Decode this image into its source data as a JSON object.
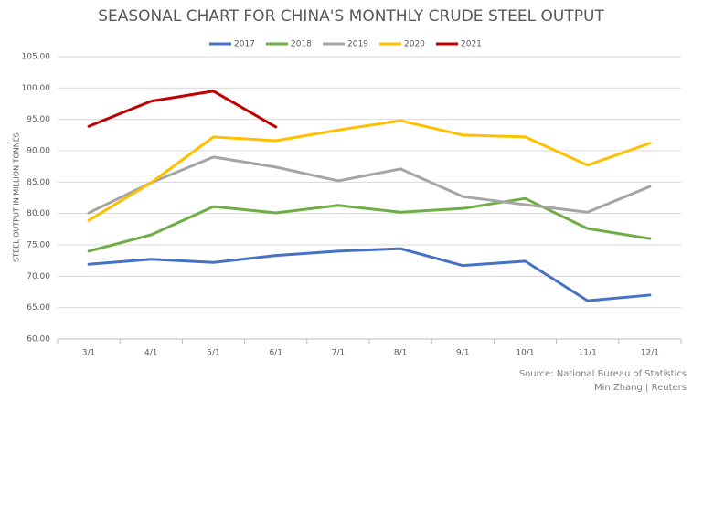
{
  "chart_data": {
    "type": "line",
    "title": "SEASONAL CHART FOR CHINA'S MONTHLY CRUDE STEEL OUTPUT",
    "y_label": "STEEL OUTPUT IN MILLION TONNES",
    "source": "Source: National Bureau of Statistics",
    "credit": "Min Zhang | Reuters",
    "categories": [
      "3/1",
      "4/1",
      "5/1",
      "6/1",
      "7/1",
      "8/1",
      "9/1",
      "10/1",
      "11/1",
      "12/1"
    ],
    "series": [
      {
        "name": "2017",
        "color": "#4472c4",
        "values": [
          71.9,
          72.7,
          72.2,
          73.3,
          74.0,
          74.4,
          71.7,
          72.4,
          66.1,
          67.0
        ]
      },
      {
        "name": "2018",
        "color": "#70ad47",
        "values": [
          74.0,
          76.6,
          81.1,
          80.1,
          81.3,
          80.2,
          80.8,
          82.4,
          77.6,
          76.0
        ]
      },
      {
        "name": "2019",
        "color": "#a5a5a5",
        "values": [
          80.1,
          84.9,
          89.0,
          87.4,
          85.2,
          87.1,
          82.7,
          81.4,
          80.2,
          84.3
        ]
      },
      {
        "name": "2020",
        "color": "#ffc000",
        "values": [
          78.9,
          84.9,
          92.2,
          91.6,
          93.3,
          94.8,
          92.5,
          92.2,
          87.7,
          91.2
        ]
      },
      {
        "name": "2021",
        "color": "#c00000",
        "values": [
          93.9,
          97.9,
          99.5,
          93.8,
          null,
          null,
          null,
          null,
          null,
          null
        ]
      }
    ],
    "ylim": [
      60,
      105
    ],
    "yticks": [
      {
        "value": 60,
        "label": "60.00"
      },
      {
        "value": 65,
        "label": "65.00"
      },
      {
        "value": 70,
        "label": "70.00"
      },
      {
        "value": 75,
        "label": "75.00"
      },
      {
        "value": 80,
        "label": "80.00"
      },
      {
        "value": 85,
        "label": "85.00"
      },
      {
        "value": 90,
        "label": "90.00"
      },
      {
        "value": 95,
        "label": "95.00"
      },
      {
        "value": 100,
        "label": "100.00"
      },
      {
        "value": 105,
        "label": "105.00"
      }
    ],
    "grid": true,
    "legend": "top"
  }
}
